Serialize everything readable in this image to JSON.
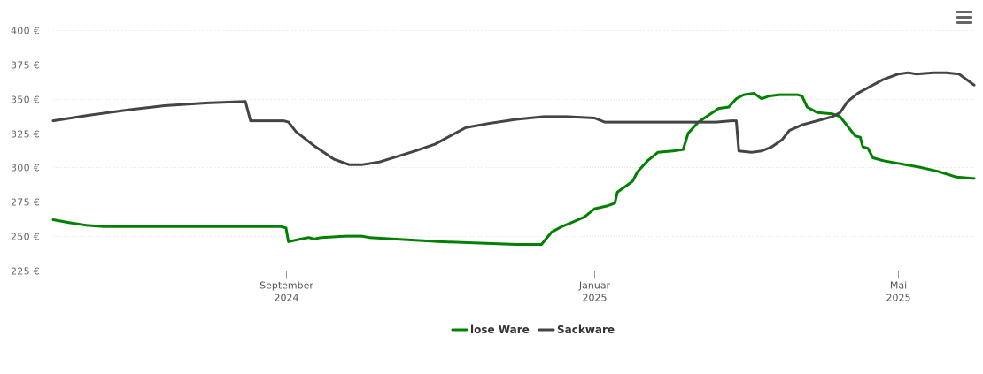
{
  "menu": {
    "icon": "hamburger-menu-icon"
  },
  "chart_data": {
    "type": "line",
    "title": "",
    "xlabel": "",
    "ylabel": "",
    "y_tick_format": "{v} €",
    "ylim": [
      225,
      400
    ],
    "yticks": [
      225,
      250,
      275,
      300,
      325,
      350,
      375,
      400
    ],
    "xlim": [
      "2024-06-01",
      "2025-05-31"
    ],
    "x_ticks": [
      {
        "date": "2024-09-01",
        "line1": "September",
        "line2": "2024"
      },
      {
        "date": "2025-01-01",
        "line1": "Januar",
        "line2": "2025"
      },
      {
        "date": "2025-05-01",
        "line1": "Mai",
        "line2": "2025"
      }
    ],
    "grid": true,
    "legend_position": "bottom-center",
    "series": [
      {
        "name": "lose Ware",
        "color": "#008000",
        "points": [
          [
            "2024-06-01",
            262
          ],
          [
            "2024-06-07",
            260
          ],
          [
            "2024-06-14",
            258
          ],
          [
            "2024-06-21",
            257
          ],
          [
            "2024-07-01",
            257
          ],
          [
            "2024-08-01",
            257
          ],
          [
            "2024-08-30",
            257
          ],
          [
            "2024-09-01",
            256
          ],
          [
            "2024-09-02",
            246
          ],
          [
            "2024-09-07",
            248
          ],
          [
            "2024-09-10",
            249
          ],
          [
            "2024-09-12",
            248
          ],
          [
            "2024-09-15",
            249
          ],
          [
            "2024-09-25",
            250
          ],
          [
            "2024-10-01",
            250
          ],
          [
            "2024-10-04",
            249
          ],
          [
            "2024-11-01",
            246
          ],
          [
            "2024-12-01",
            244
          ],
          [
            "2024-12-11",
            244
          ],
          [
            "2024-12-15",
            253
          ],
          [
            "2024-12-19",
            257
          ],
          [
            "2024-12-23",
            260
          ],
          [
            "2024-12-28",
            264
          ],
          [
            "2025-01-01",
            270
          ],
          [
            "2025-01-06",
            272
          ],
          [
            "2025-01-09",
            274
          ],
          [
            "2025-01-10",
            282
          ],
          [
            "2025-01-13",
            286
          ],
          [
            "2025-01-16",
            290
          ],
          [
            "2025-01-18",
            297
          ],
          [
            "2025-01-22",
            305
          ],
          [
            "2025-01-26",
            311
          ],
          [
            "2025-02-01",
            312
          ],
          [
            "2025-02-05",
            313
          ],
          [
            "2025-02-07",
            325
          ],
          [
            "2025-02-11",
            333
          ],
          [
            "2025-02-15",
            338
          ],
          [
            "2025-02-19",
            343
          ],
          [
            "2025-02-23",
            344
          ],
          [
            "2025-02-26",
            350
          ],
          [
            "2025-03-01",
            353
          ],
          [
            "2025-03-05",
            354
          ],
          [
            "2025-03-08",
            350
          ],
          [
            "2025-03-11",
            352
          ],
          [
            "2025-03-15",
            353
          ],
          [
            "2025-03-22",
            353
          ],
          [
            "2025-03-24",
            352
          ],
          [
            "2025-03-26",
            344
          ],
          [
            "2025-03-30",
            340
          ],
          [
            "2025-04-05",
            339
          ],
          [
            "2025-04-08",
            337
          ],
          [
            "2025-04-11",
            330
          ],
          [
            "2025-04-14",
            323
          ],
          [
            "2025-04-16",
            322
          ],
          [
            "2025-04-17",
            315
          ],
          [
            "2025-04-19",
            314
          ],
          [
            "2025-04-21",
            307
          ],
          [
            "2025-04-25",
            305
          ],
          [
            "2025-05-01",
            303
          ],
          [
            "2025-05-10",
            300
          ],
          [
            "2025-05-17",
            297
          ],
          [
            "2025-05-24",
            293
          ],
          [
            "2025-05-31",
            292
          ]
        ]
      },
      {
        "name": "Sackware",
        "color": "#434348",
        "points": [
          [
            "2024-06-01",
            334
          ],
          [
            "2024-06-15",
            338
          ],
          [
            "2024-07-01",
            342
          ],
          [
            "2024-07-15",
            345
          ],
          [
            "2024-08-01",
            347
          ],
          [
            "2024-08-16",
            348
          ],
          [
            "2024-08-18",
            334
          ],
          [
            "2024-08-23",
            334
          ],
          [
            "2024-08-31",
            334
          ],
          [
            "2024-09-02",
            333
          ],
          [
            "2024-09-05",
            326
          ],
          [
            "2024-09-12",
            316
          ],
          [
            "2024-09-20",
            306
          ],
          [
            "2024-09-26",
            302
          ],
          [
            "2024-10-01",
            302
          ],
          [
            "2024-10-08",
            304
          ],
          [
            "2024-10-15",
            308
          ],
          [
            "2024-10-22",
            312
          ],
          [
            "2024-10-30",
            317
          ],
          [
            "2024-11-04",
            322
          ],
          [
            "2024-11-11",
            329
          ],
          [
            "2024-11-20",
            332
          ],
          [
            "2024-12-01",
            335
          ],
          [
            "2024-12-12",
            337
          ],
          [
            "2024-12-21",
            337
          ],
          [
            "2025-01-01",
            336
          ],
          [
            "2025-01-05",
            333
          ],
          [
            "2025-01-11",
            333
          ],
          [
            "2025-02-01",
            333
          ],
          [
            "2025-02-18",
            333
          ],
          [
            "2025-02-24",
            334
          ],
          [
            "2025-02-26",
            334
          ],
          [
            "2025-02-27",
            312
          ],
          [
            "2025-03-04",
            311
          ],
          [
            "2025-03-08",
            312
          ],
          [
            "2025-03-12",
            315
          ],
          [
            "2025-03-16",
            320
          ],
          [
            "2025-03-19",
            327
          ],
          [
            "2025-03-24",
            331
          ],
          [
            "2025-03-30",
            334
          ],
          [
            "2025-04-05",
            337
          ],
          [
            "2025-04-08",
            340
          ],
          [
            "2025-04-11",
            348
          ],
          [
            "2025-04-15",
            354
          ],
          [
            "2025-04-20",
            359
          ],
          [
            "2025-04-25",
            364
          ],
          [
            "2025-05-01",
            368
          ],
          [
            "2025-05-05",
            369
          ],
          [
            "2025-05-08",
            368
          ],
          [
            "2025-05-15",
            369
          ],
          [
            "2025-05-20",
            369
          ],
          [
            "2025-05-25",
            368
          ],
          [
            "2025-05-31",
            360
          ]
        ]
      }
    ]
  }
}
